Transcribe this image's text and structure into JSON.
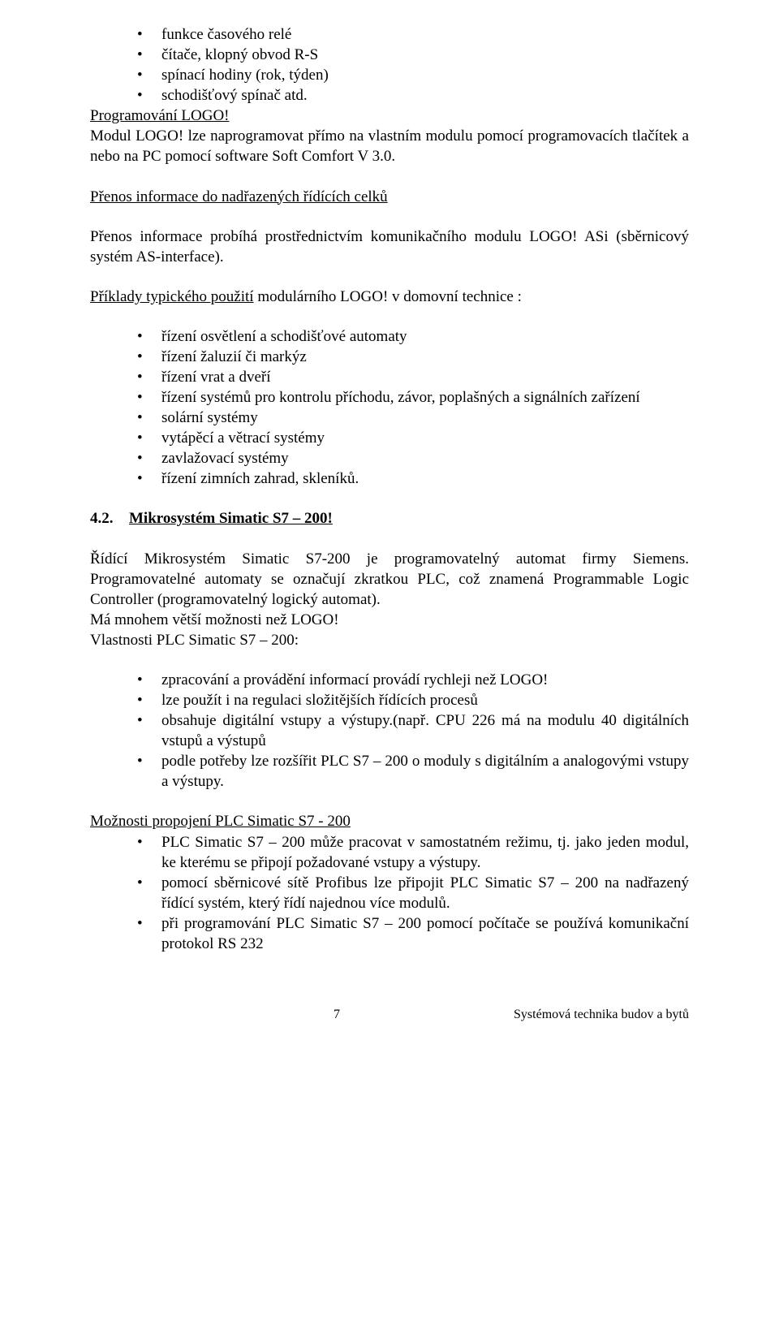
{
  "top_bullets": [
    "funkce časového relé",
    "čítače, klopný obvod R-S",
    "spínací hodiny (rok, týden)",
    "schodišťový spínač atd."
  ],
  "prog_logo": "Programování LOGO!",
  "modul_logo": "Modul LOGO! lze naprogramovat přímo na vlastním modulu pomocí programovacích tlačítek a nebo na  PC pomocí software Soft Comfort V 3.0.",
  "prenos_h": "Přenos informace do nadřazených řídících celků",
  "prenos_p": "Přenos  informace probíhá prostřednictvím komunikačního modulu LOGO! ASi (sběrnicový systém AS-interface).",
  "priklady_lead_u": "Příklady typického použití",
  "priklady_lead_rest": " modulárního LOGO! v domovní technice :",
  "priklady_bullets": [
    "řízení osvětlení a schodišťové automaty",
    "řízení žaluzií či markýz",
    "řízení vrat a dveří",
    "řízení systémů pro kontrolu příchodu, závor, poplašných a signálních zařízení",
    "solární systémy",
    "vytápěcí a větrací systémy",
    "zavlažovací systémy",
    "řízení zimních zahrad, skleníků."
  ],
  "h42_num": "4.2.",
  "h42_title": "Mikrosystém Simatic S7 – 200!",
  "s7_para": "Řídící Mikrosystém Simatic S7-200 je programovatelný automat firmy Siemens. Programovatelné automaty se označují zkratkou PLC, což znamená Programmable Logic Controller (programovatelný logický automat).",
  "s7_more": "Má mnohem větší možnosti než LOGO!",
  "s7_vlast": "Vlastnosti PLC  Simatic S7 – 200:",
  "s7_bullets": [
    "zpracování a provádění informací provádí rychleji než LOGO!",
    "lze použít i na regulaci složitějších řídících procesů",
    "obsahuje digitální vstupy a výstupy.(např. CPU 226 má na modulu 40 digitálních vstupů a výstupů",
    "podle potřeby lze rozšířit PLC S7 – 200 o moduly s digitálním a analogovými vstupy a výstupy."
  ],
  "moznosti_h": "Možnosti propojení PLC Simatic S7 - 200",
  "moznosti_bullets": [
    "PLC Simatic S7 – 200 může pracovat v samostatném režimu, tj. jako jeden modul, ke kterému se připojí požadované vstupy a výstupy.",
    "pomocí sběrnicové sítě Profibus lze připojit PLC Simatic S7 – 200 na nadřazený řídící systém, který řídí najednou více modulů.",
    "při programování PLC Simatic S7 – 200 pomocí počítače se používá komunikační protokol RS 232"
  ],
  "footer_page": "7",
  "footer_right": "Systémová technika budov a bytů"
}
